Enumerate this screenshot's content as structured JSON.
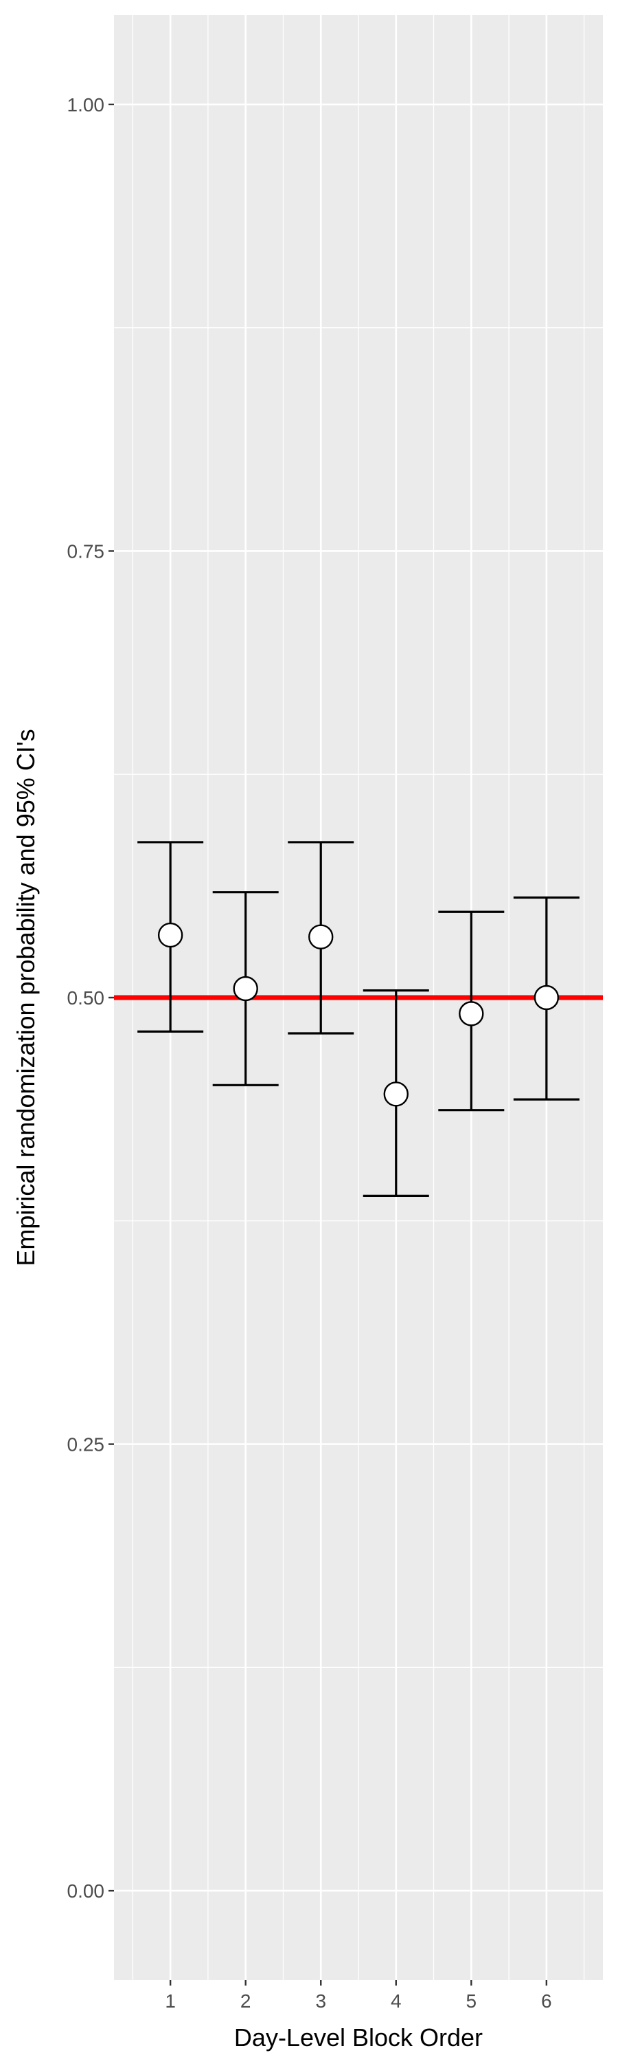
{
  "chart_data": {
    "type": "scatter",
    "title": "",
    "xlabel": "Day-Level Block Order",
    "ylabel": "Empirical randomization probability and 95% CI's",
    "categories": [
      "1",
      "2",
      "3",
      "4",
      "5",
      "6"
    ],
    "x": [
      1,
      2,
      3,
      4,
      5,
      6
    ],
    "values": [
      0.535,
      0.505,
      0.534,
      0.446,
      0.491,
      0.5
    ],
    "ci_lower": [
      0.481,
      0.451,
      0.48,
      0.389,
      0.437,
      0.443
    ],
    "ci_upper": [
      0.587,
      0.559,
      0.587,
      0.504,
      0.548,
      0.556
    ],
    "reference_line": {
      "y": 0.5,
      "color": "#ff0000"
    },
    "ylim": [
      -0.05,
      1.05
    ],
    "xlim": [
      0.25,
      6.75
    ],
    "y_ticks": [
      0.0,
      0.25,
      0.5,
      0.75,
      1.0
    ],
    "y_tick_labels": [
      "0.00",
      "0.25",
      "0.50",
      "0.75",
      "1.00"
    ],
    "y_minor_ticks": [
      0.125,
      0.375,
      0.625,
      0.875
    ],
    "grid": true,
    "legend": "none",
    "colors": {
      "panel": "#ebebeb",
      "grid": "#ffffff",
      "errorbar": "#000000",
      "point_fill": "#ffffff",
      "point_stroke": "#000000",
      "tick_text": "#4d4d4d",
      "axis_title": "#000000"
    }
  }
}
